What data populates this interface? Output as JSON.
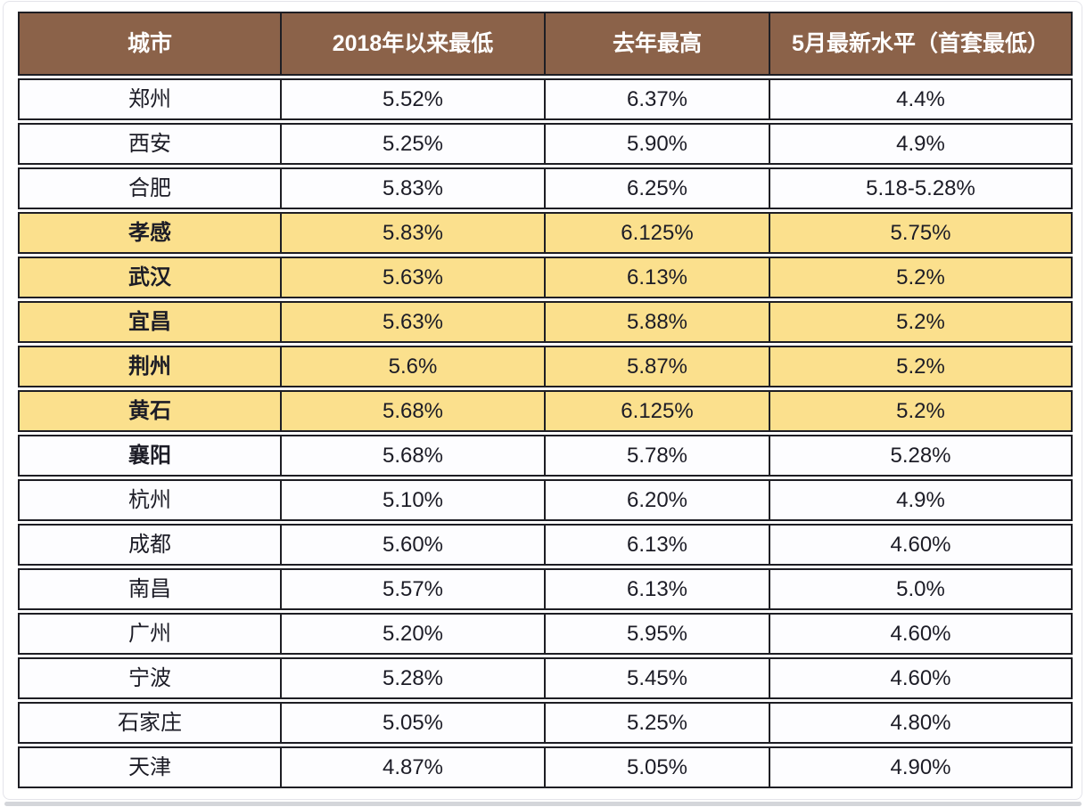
{
  "colors": {
    "header_bg": "#8B6249",
    "header_text": "#FFFFFF",
    "highlight_row_bg": "#FBE08D",
    "row_bg": "#FDFDFF",
    "border": "#1E1E24",
    "cell_text": "#1C1C26",
    "bottom_bar": "#D4D6DA"
  },
  "chart_data": {
    "type": "table",
    "title": "",
    "columns": [
      "城市",
      "2018年以来最低",
      "去年最高",
      "5月最新水平（首套最低）"
    ],
    "rows": [
      [
        "郑州",
        "5.52%",
        "6.37%",
        "4.4%"
      ],
      [
        "西安",
        "5.25%",
        "5.90%",
        "4.9%"
      ],
      [
        "合肥",
        "5.83%",
        "6.25%",
        "5.18-5.28%"
      ],
      [
        "孝感",
        "5.83%",
        "6.125%",
        "5.75%"
      ],
      [
        "武汉",
        "5.63%",
        "6.13%",
        "5.2%"
      ],
      [
        "宜昌",
        "5.63%",
        "5.88%",
        "5.2%"
      ],
      [
        "荆州",
        "5.6%",
        "5.87%",
        "5.2%"
      ],
      [
        "黄石",
        "5.68%",
        "6.125%",
        "5.2%"
      ],
      [
        "襄阳",
        "5.68%",
        "5.78%",
        "5.28%"
      ],
      [
        "杭州",
        "5.10%",
        "6.20%",
        "4.9%"
      ],
      [
        "成都",
        "5.60%",
        "6.13%",
        "4.60%"
      ],
      [
        "南昌",
        "5.57%",
        "6.13%",
        "5.0%"
      ],
      [
        "广州",
        "5.20%",
        "5.95%",
        "4.60%"
      ],
      [
        "宁波",
        "5.28%",
        "5.45%",
        "4.60%"
      ],
      [
        "石家庄",
        "5.05%",
        "5.25%",
        "4.80%"
      ],
      [
        "天津",
        "4.87%",
        "5.05%",
        "4.90%"
      ]
    ],
    "highlighted_rows": [
      "孝感",
      "武汉",
      "宜昌",
      "荆州",
      "黄石"
    ],
    "bold_city_rows": [
      "孝感",
      "武汉",
      "宜昌",
      "荆州",
      "黄石",
      "襄阳"
    ],
    "layout": {
      "grid": "on",
      "header_style": "brown background, white bold text",
      "highlight_style": "yellow background rows for Hubei cities"
    }
  }
}
